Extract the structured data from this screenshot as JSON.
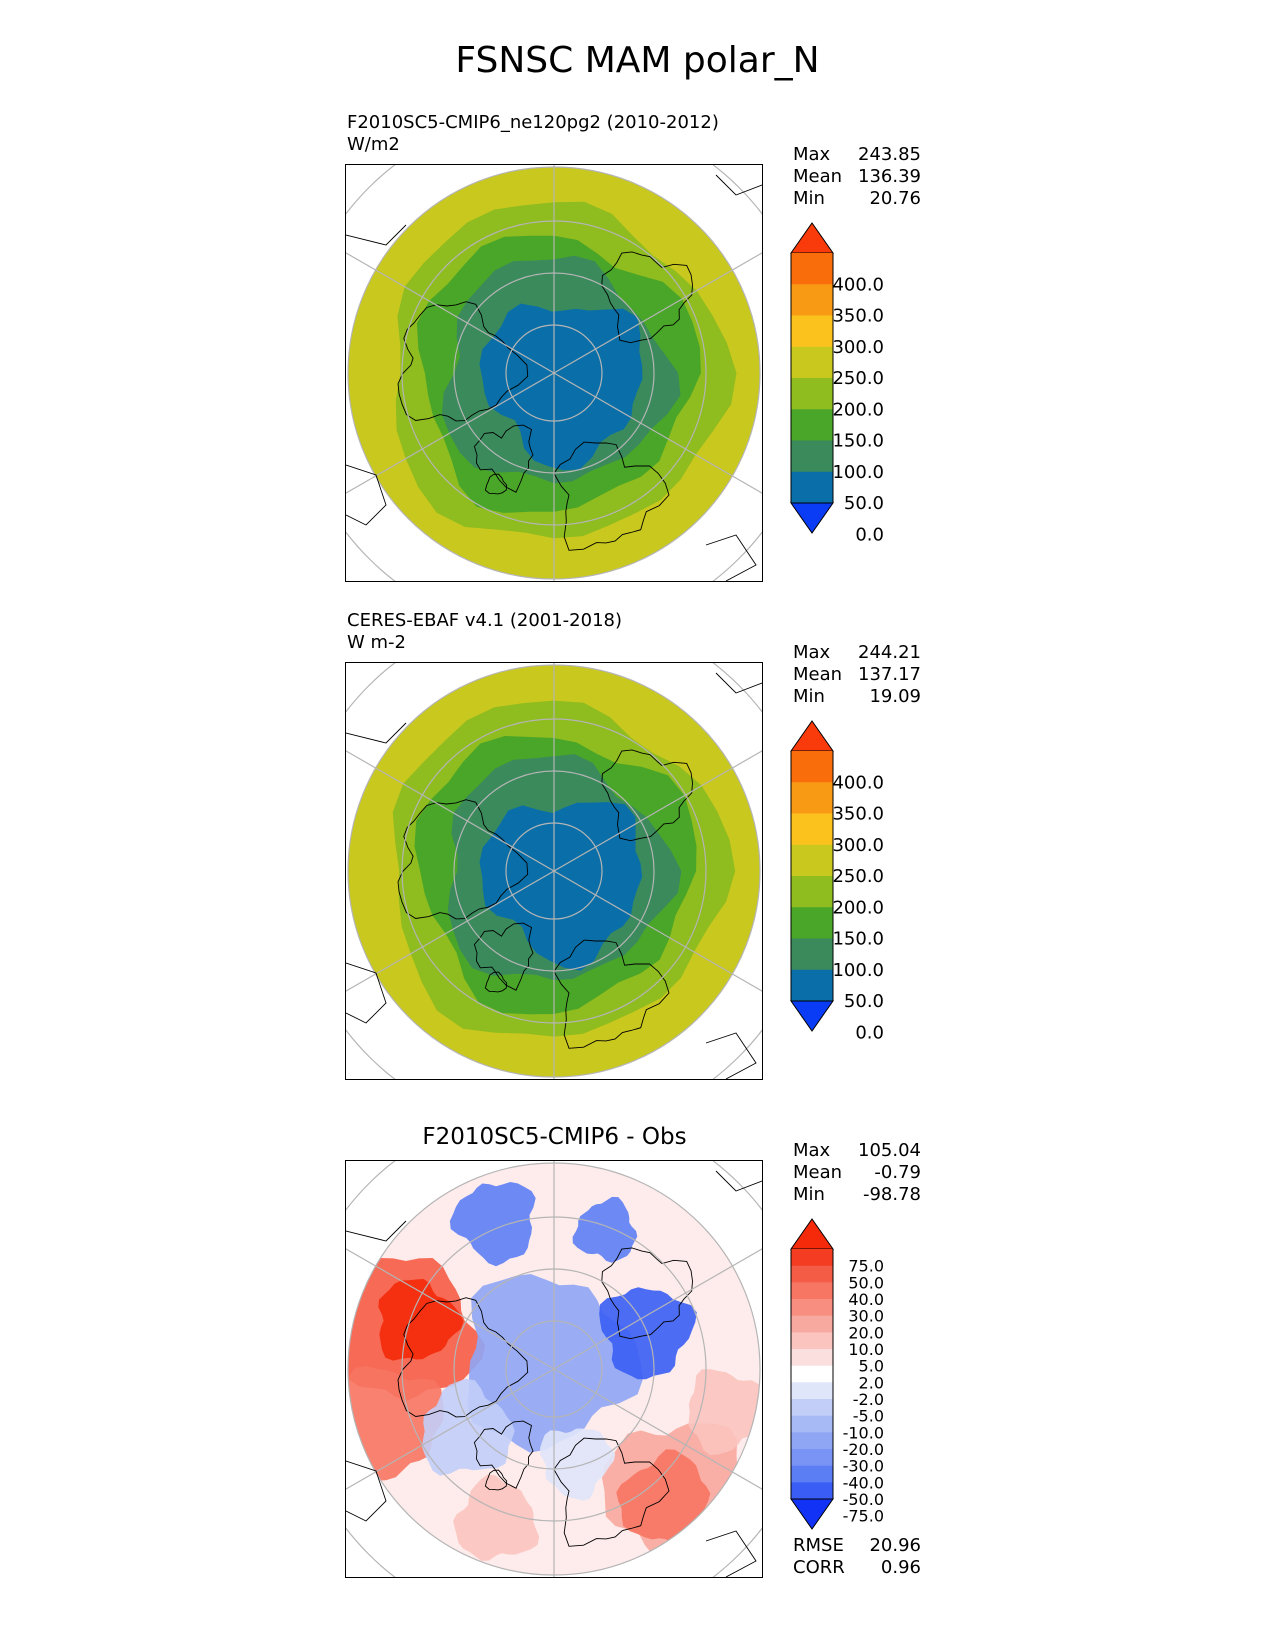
{
  "title": "FSNSC MAM polar_N",
  "colors": {
    "seq": [
      "#0a3cf5",
      "#0a6fa8",
      "#3a8a5c",
      "#4aa628",
      "#8fbc1e",
      "#c9c81e",
      "#fbc21e",
      "#f89a14",
      "#f96d0a",
      "#f93a0a"
    ],
    "div": [
      "#1233f5",
      "#3a5ef5",
      "#5c7ef5",
      "#7a94f5",
      "#8fa6f5",
      "#a8baf5",
      "#c2cef8",
      "#dfe6fa",
      "#ffffff",
      "#fbdede",
      "#fbc4bf",
      "#f8a99f",
      "#f88e80",
      "#f77563",
      "#f55c46",
      "#f43c22",
      "#f42a0a"
    ]
  },
  "panels": [
    {
      "subtitle": "F2010SC5-CMIP6_ne120pg2 (2010-2012)",
      "units": "W/m2",
      "stats": [
        [
          "Max",
          "243.85"
        ],
        [
          "Mean",
          "136.39"
        ],
        [
          "Min",
          "20.76"
        ]
      ],
      "cbar_labels": [
        "400.0",
        "350.0",
        "300.0",
        "250.0",
        "200.0",
        "150.0",
        "100.0",
        "50.0",
        "0.0"
      ]
    },
    {
      "subtitle": "CERES-EBAF v4.1 (2001-2018)",
      "units": "W m-2",
      "stats": [
        [
          "Max",
          "244.21"
        ],
        [
          "Mean",
          "137.17"
        ],
        [
          "Min",
          "19.09"
        ]
      ],
      "cbar_labels": [
        "400.0",
        "350.0",
        "300.0",
        "250.0",
        "200.0",
        "150.0",
        "100.0",
        "50.0",
        "0.0"
      ]
    },
    {
      "title": "F2010SC5-CMIP6 - Obs",
      "stats": [
        [
          "Max",
          "105.04"
        ],
        [
          "Mean",
          "-0.79"
        ],
        [
          "Min",
          "-98.78"
        ]
      ],
      "cbar_labels": [
        "75.0",
        "50.0",
        "40.0",
        "30.0",
        "20.0",
        "10.0",
        "5.0",
        "2.0",
        "-2.0",
        "-5.0",
        "-10.0",
        "-20.0",
        "-30.0",
        "-40.0",
        "-50.0",
        "-75.0"
      ],
      "metrics": [
        [
          "RMSE",
          "20.96"
        ],
        [
          "CORR",
          "0.96"
        ]
      ]
    }
  ]
}
